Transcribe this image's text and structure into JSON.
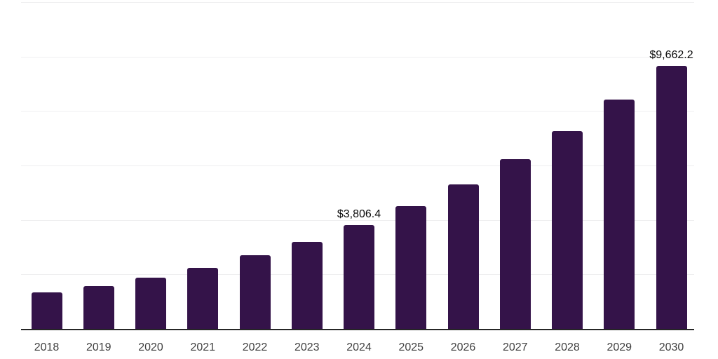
{
  "chart": {
    "background_color": "#ffffff",
    "bar_color": "#341349",
    "axis_line_color": "#262626",
    "gridline_color": "#efeff0",
    "tick_label_color": "#404040",
    "value_label_color": "#0a0a0a"
  },
  "chart_data": {
    "type": "bar",
    "title": "",
    "xlabel": "",
    "ylabel": "",
    "categories": [
      "2018",
      "2019",
      "2020",
      "2021",
      "2022",
      "2023",
      "2024",
      "2025",
      "2026",
      "2027",
      "2028",
      "2029",
      "2030"
    ],
    "values": [
      1330,
      1560,
      1880,
      2250,
      2700,
      3200,
      3806.4,
      4510,
      5300,
      6230,
      7270,
      8420,
      9662.2
    ],
    "value_labels": [
      "",
      "",
      "",
      "",
      "",
      "",
      "$3,806.4",
      "",
      "",
      "",
      "",
      "",
      "$9,662.2"
    ],
    "labeled_points": [
      {
        "category": "2024",
        "label": "$3,806.4"
      },
      {
        "category": "2030",
        "label": "$9,662.2"
      }
    ],
    "ylim": [
      0,
      12000
    ],
    "gridline_interval": 2000,
    "grid": true,
    "legend": false,
    "y_axis_tick_labels_visible": false,
    "x_axis_tick_labels_visible": true
  }
}
